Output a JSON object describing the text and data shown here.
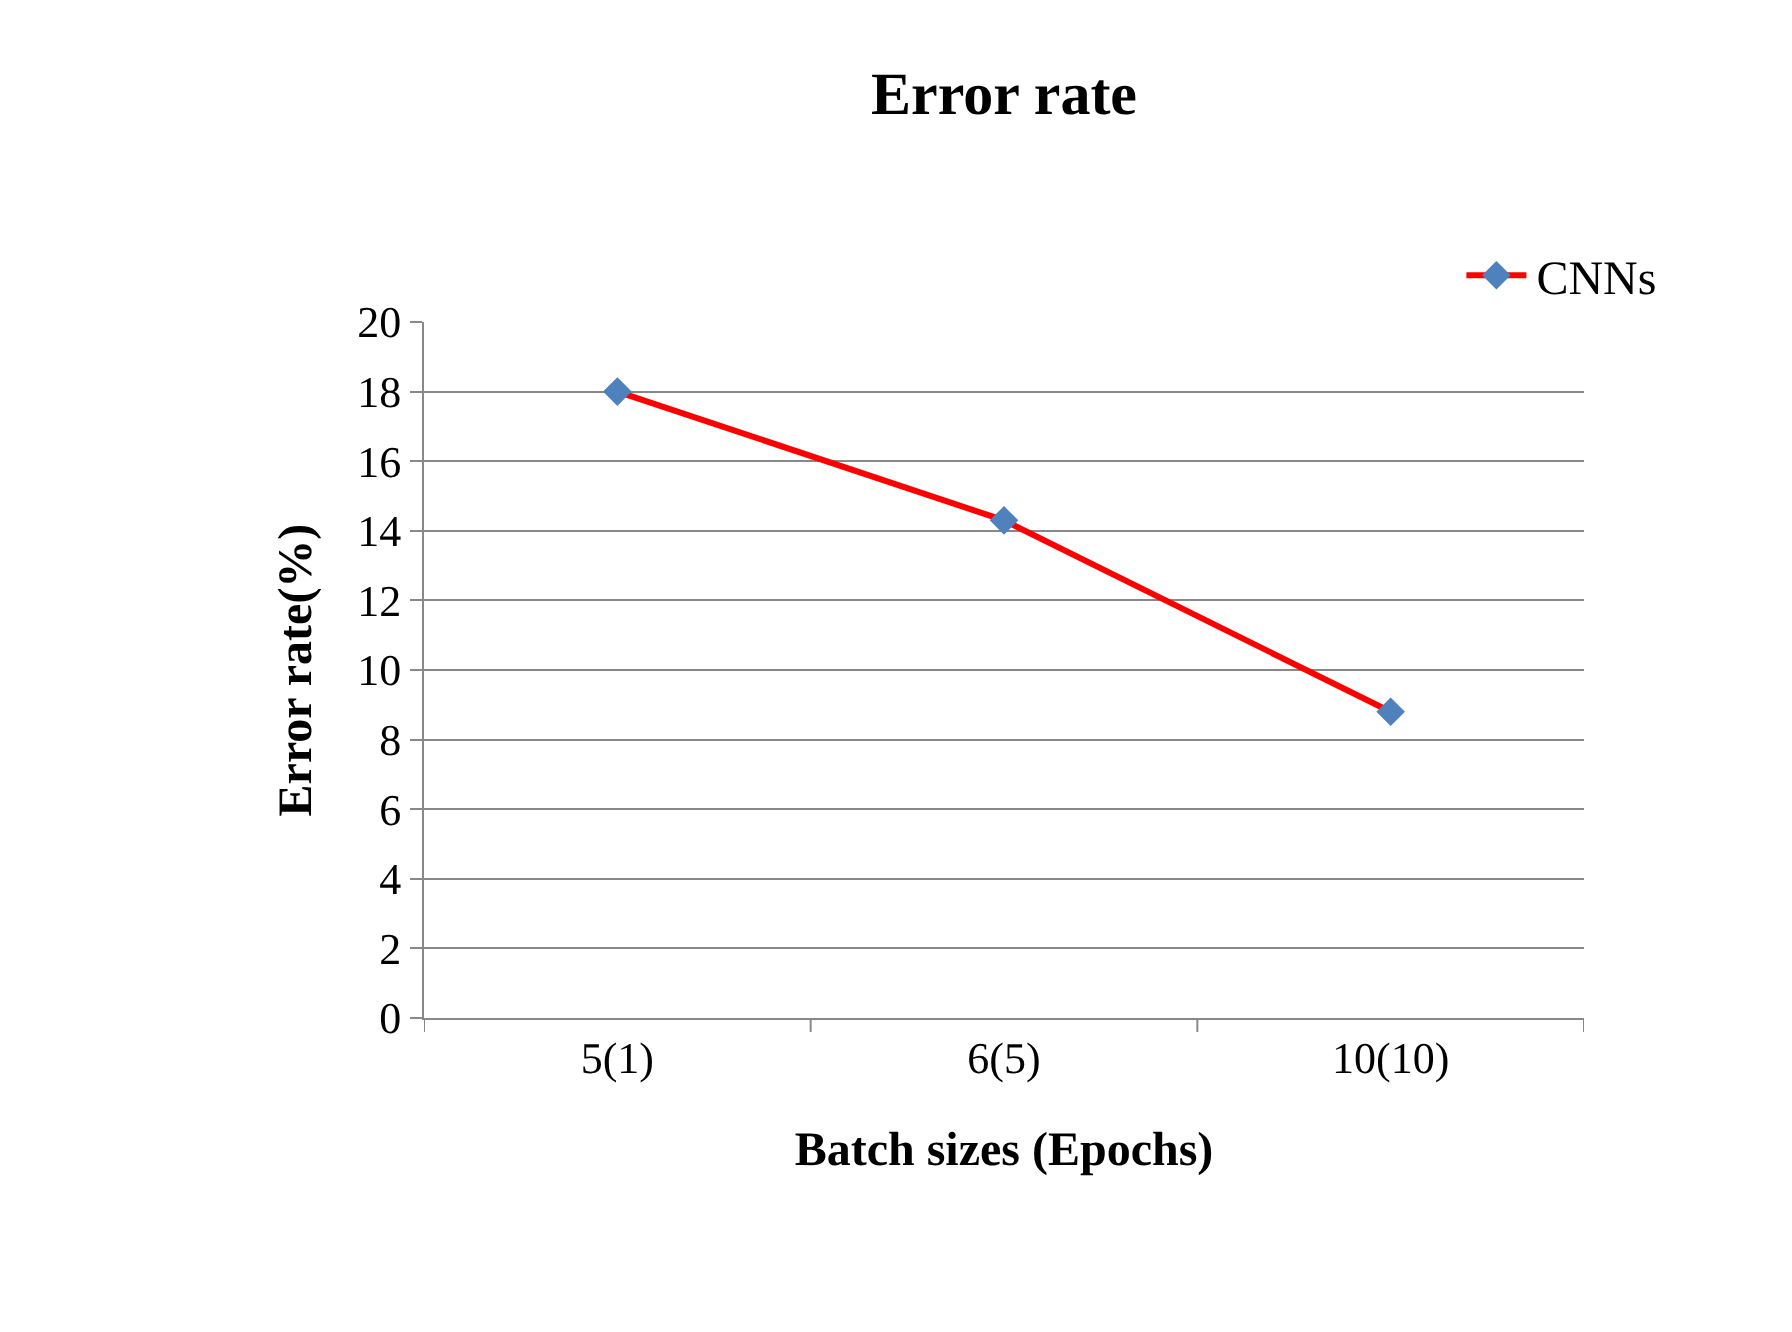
{
  "chart_data": {
    "type": "line",
    "title": "Error rate",
    "xlabel": "Batch sizes (Epochs)",
    "ylabel": "Error rate(%)",
    "categories": [
      "5(1)",
      "6(5)",
      "10(10)"
    ],
    "series": [
      {
        "name": "CNNs",
        "color": "#ff0000",
        "colors": [
          "#4f81bd",
          "#4f81bd",
          "#4f81bd"
        ],
        "values": [
          18,
          14.3,
          8.8
        ]
      }
    ],
    "ylim": [
      0,
      20
    ],
    "yticks": [
      0,
      2,
      4,
      6,
      8,
      10,
      12,
      14,
      16,
      18,
      20
    ],
    "grid": "y",
    "legend": "top right",
    "marker": "diamond",
    "line_style": "solid"
  }
}
